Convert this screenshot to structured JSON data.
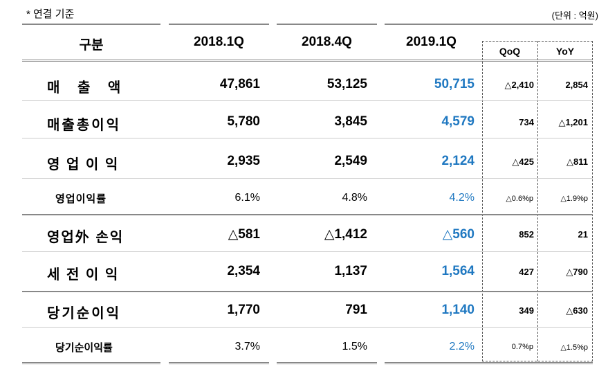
{
  "note": "* 연결 기준",
  "unit": "(단위 : 억원)",
  "headers": {
    "category": "구분",
    "q1_2018": "2018.1Q",
    "q4_2018": "2018.4Q",
    "q1_2019": "2019.1Q",
    "qoq": "QoQ",
    "yoy": "YoY"
  },
  "rows": [
    {
      "label": "매  출  액",
      "q1_2018": "47,861",
      "q4_2018": "53,125",
      "q1_2019": "50,715",
      "qoq": "△2,410",
      "yoy": "2,854"
    },
    {
      "label": "매출총이익",
      "q1_2018": "5,780",
      "q4_2018": "3,845",
      "q1_2019": "4,579",
      "qoq": "734",
      "yoy": "△1,201"
    },
    {
      "label": "영 업 이 익",
      "q1_2018": "2,935",
      "q4_2018": "2,549",
      "q1_2019": "2,124",
      "qoq": "△425",
      "yoy": "△811"
    },
    {
      "label": "영업이익률",
      "q1_2018": "6.1%",
      "q4_2018": "4.8%",
      "q1_2019": "4.2%",
      "qoq": "△0.6%p",
      "yoy": "△1.9%p"
    },
    {
      "label": "영업外 손익",
      "q1_2018": "△581",
      "q4_2018": "△1,412",
      "q1_2019": "△560",
      "qoq": "852",
      "yoy": "21"
    },
    {
      "label": "세 전 이 익",
      "q1_2018": "2,354",
      "q4_2018": "1,137",
      "q1_2019": "1,564",
      "qoq": "427",
      "yoy": "△790"
    },
    {
      "label": "당기순이익",
      "q1_2018": "1,770",
      "q4_2018": "791",
      "q1_2019": "1,140",
      "qoq": "349",
      "yoy": "△630"
    },
    {
      "label": "당기순이익률",
      "q1_2018": "3.7%",
      "q4_2018": "1.5%",
      "q1_2019": "2.2%",
      "qoq": "0.7%p",
      "yoy": "△1.5%p"
    }
  ],
  "colors": {
    "highlight": "#1f78c1",
    "rule": "#888888"
  }
}
